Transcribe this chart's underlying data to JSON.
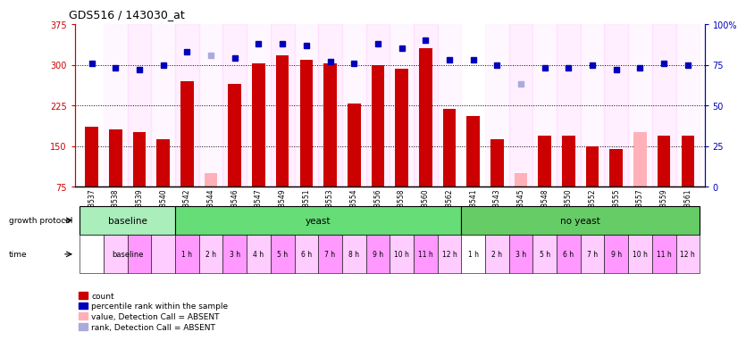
{
  "title": "GDS516 / 143030_at",
  "samples": [
    "GSM8537",
    "GSM8538",
    "GSM8539",
    "GSM8540",
    "GSM8542",
    "GSM8544",
    "GSM8546",
    "GSM8547",
    "GSM8549",
    "GSM8551",
    "GSM8553",
    "GSM8554",
    "GSM8556",
    "GSM8558",
    "GSM8560",
    "GSM8562",
    "GSM8541",
    "GSM8543",
    "GSM8545",
    "GSM8548",
    "GSM8550",
    "GSM8552",
    "GSM8555",
    "GSM8557",
    "GSM8559",
    "GSM8561"
  ],
  "counts": [
    185,
    180,
    175,
    162,
    270,
    100,
    265,
    302,
    318,
    310,
    303,
    228,
    300,
    293,
    330,
    218,
    205,
    162,
    100,
    170,
    170,
    150,
    145,
    175,
    170,
    170
  ],
  "absent_count": [
    false,
    false,
    false,
    false,
    false,
    true,
    false,
    false,
    false,
    false,
    false,
    false,
    false,
    false,
    false,
    false,
    false,
    false,
    true,
    false,
    false,
    false,
    false,
    true,
    false,
    false
  ],
  "percentile_ranks_pct": [
    76,
    73,
    72,
    75,
    83,
    81,
    79,
    88,
    88,
    87,
    77,
    76,
    88,
    85,
    90,
    78,
    78,
    75,
    63,
    73,
    73,
    75,
    72,
    73,
    76,
    75
  ],
  "absent_rank": [
    false,
    false,
    false,
    false,
    false,
    true,
    false,
    false,
    false,
    false,
    false,
    false,
    false,
    false,
    false,
    false,
    false,
    false,
    true,
    false,
    false,
    false,
    false,
    false,
    false,
    false
  ],
  "ylim_left": [
    75,
    375
  ],
  "ylim_right": [
    0,
    100
  ],
  "yticks_left": [
    75,
    150,
    225,
    300,
    375
  ],
  "yticks_right": [
    0,
    25,
    50,
    75,
    100
  ],
  "bar_color": "#cc0000",
  "absent_bar_color": "#ffb0b8",
  "dot_color": "#0000bb",
  "absent_dot_color": "#aaaadd",
  "hline_y_left": [
    150,
    225,
    300
  ],
  "growth_protocol_groups": [
    {
      "label": "baseline",
      "start": 0,
      "end": 4,
      "color": "#aaeebb"
    },
    {
      "label": "yeast",
      "start": 4,
      "end": 16,
      "color": "#66dd77"
    },
    {
      "label": "no yeast",
      "start": 16,
      "end": 26,
      "color": "#66cc66"
    }
  ],
  "time_bg_colors": [
    "#ffffff",
    "#ffccff",
    "#ff99ff",
    "#ffccff",
    "#ff99ff",
    "#ffccff",
    "#ff99ff",
    "#ffccff",
    "#ff99ff",
    "#ffccff",
    "#ff99ff",
    "#ffccff",
    "#ff99ff",
    "#ffccff",
    "#ff99ff",
    "#ffccff",
    "#ffffff",
    "#ffccff",
    "#ff99ff",
    "#ffccff",
    "#ff99ff",
    "#ffccff",
    "#ff99ff",
    "#ffccff",
    "#ff99ff",
    "#ffccff"
  ],
  "yeast_times": [
    "1 h",
    "2 h",
    "3 h",
    "4 h",
    "5 h",
    "6 h",
    "7 h",
    "8 h",
    "9 h",
    "10 h",
    "11 h",
    "12 h"
  ],
  "no_yeast_times": [
    "1 h",
    "2 h",
    "3 h",
    "5 h",
    "6 h",
    "7 h",
    "9 h",
    "10 h",
    "11 h",
    "12 h"
  ],
  "legend_items": [
    {
      "color": "#cc0000",
      "label": "count"
    },
    {
      "color": "#0000bb",
      "label": "percentile rank within the sample"
    },
    {
      "color": "#ffb0b8",
      "label": "value, Detection Call = ABSENT"
    },
    {
      "color": "#aaaadd",
      "label": "rank, Detection Call = ABSENT"
    }
  ]
}
